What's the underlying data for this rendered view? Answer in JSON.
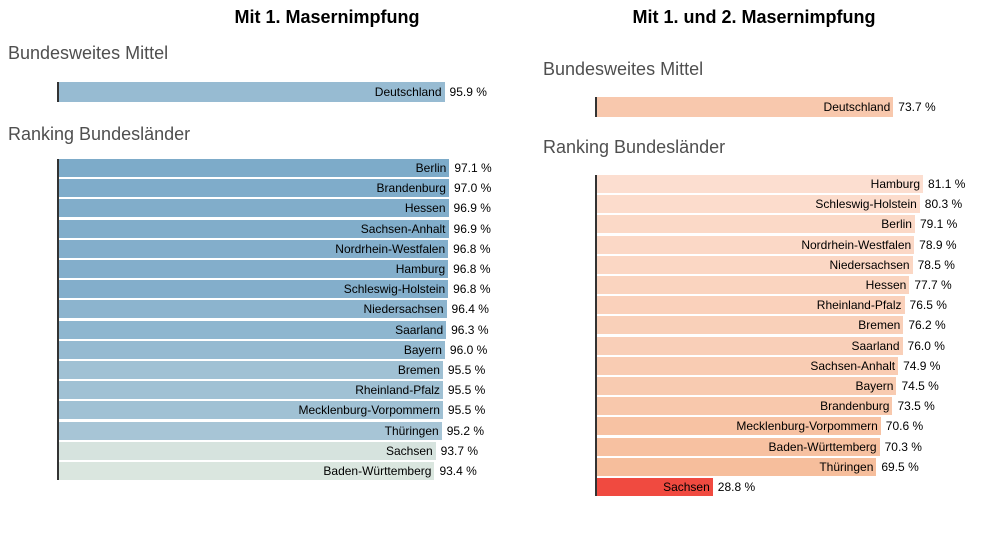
{
  "chart_data": [
    {
      "type": "bar",
      "orientation": "horizontal",
      "title": "Mit 1. Masernimpfung",
      "xlim": [
        0,
        100
      ],
      "value_unit": "%",
      "grid": false,
      "legend": false,
      "axis_color": "#333333",
      "sections": [
        {
          "label": "Bundesweites Mittel",
          "bars": [
            {
              "category": "Deutschland",
              "value": 95.9,
              "value_label": "95.9 %",
              "color": "#97bbd2"
            }
          ]
        },
        {
          "label": "Ranking Bundesländer",
          "bars": [
            {
              "category": "Berlin",
              "value": 97.1,
              "value_label": "97.1 %",
              "color": "#7dabc9"
            },
            {
              "category": "Brandenburg",
              "value": 97.0,
              "value_label": "97.0 %",
              "color": "#7facca"
            },
            {
              "category": "Hessen",
              "value": 96.9,
              "value_label": "96.9 %",
              "color": "#81adca"
            },
            {
              "category": "Sachsen-Anhalt",
              "value": 96.9,
              "value_label": "96.9 %",
              "color": "#81adca"
            },
            {
              "category": "Nordrhein-Westfalen",
              "value": 96.8,
              "value_label": "96.8 %",
              "color": "#83aecb"
            },
            {
              "category": "Hamburg",
              "value": 96.8,
              "value_label": "96.8 %",
              "color": "#83aecb"
            },
            {
              "category": "Schleswig-Holstein",
              "value": 96.8,
              "value_label": "96.8 %",
              "color": "#83aecb"
            },
            {
              "category": "Niedersachsen",
              "value": 96.4,
              "value_label": "96.4 %",
              "color": "#8cb4ce"
            },
            {
              "category": "Saarland",
              "value": 96.3,
              "value_label": "96.3 %",
              "color": "#8eb6cf"
            },
            {
              "category": "Bayern",
              "value": 96.0,
              "value_label": "96.0 %",
              "color": "#95bad1"
            },
            {
              "category": "Bremen",
              "value": 95.5,
              "value_label": "95.5 %",
              "color": "#a0c1d4"
            },
            {
              "category": "Rheinland-Pfalz",
              "value": 95.5,
              "value_label": "95.5 %",
              "color": "#a0c1d4"
            },
            {
              "category": "Mecklenburg-Vorpommern",
              "value": 95.5,
              "value_label": "95.5 %",
              "color": "#a0c1d4"
            },
            {
              "category": "Thüringen",
              "value": 95.2,
              "value_label": "95.2 %",
              "color": "#a7c5d6"
            },
            {
              "category": "Sachsen",
              "value": 93.7,
              "value_label": "93.7 %",
              "color": "#d6e3de"
            },
            {
              "category": "Baden-Württemberg",
              "value": 93.4,
              "value_label": "93.4 %",
              "color": "#dae6df"
            }
          ]
        }
      ]
    },
    {
      "type": "bar",
      "orientation": "horizontal",
      "title": "Mit 1. und 2. Masernimpfung",
      "xlim": [
        0,
        100
      ],
      "value_unit": "%",
      "grid": false,
      "legend": false,
      "axis_color": "#333333",
      "sections": [
        {
          "label": "Bundesweites Mittel",
          "bars": [
            {
              "category": "Deutschland",
              "value": 73.7,
              "value_label": "73.7 %",
              "color": "#f8c8ad"
            }
          ]
        },
        {
          "label": "Ranking Bundesländer",
          "bars": [
            {
              "category": "Hamburg",
              "value": 81.1,
              "value_label": "81.1 %",
              "color": "#fcded0"
            },
            {
              "category": "Schleswig-Holstein",
              "value": 80.3,
              "value_label": "80.3 %",
              "color": "#fcdccc"
            },
            {
              "category": "Berlin",
              "value": 79.1,
              "value_label": "79.1 %",
              "color": "#fbd9c7"
            },
            {
              "category": "Nordrhein-Westfalen",
              "value": 78.9,
              "value_label": "78.9 %",
              "color": "#fbd8c6"
            },
            {
              "category": "Niedersachsen",
              "value": 78.5,
              "value_label": "78.5 %",
              "color": "#fbd7c4"
            },
            {
              "category": "Hessen",
              "value": 77.7,
              "value_label": "77.7 %",
              "color": "#fad4bf"
            },
            {
              "category": "Rheinland-Pfalz",
              "value": 76.5,
              "value_label": "76.5 %",
              "color": "#fad1bb"
            },
            {
              "category": "Bremen",
              "value": 76.2,
              "value_label": "76.2 %",
              "color": "#f9d0b9"
            },
            {
              "category": "Saarland",
              "value": 76.0,
              "value_label": "76.0 %",
              "color": "#f9cfb8"
            },
            {
              "category": "Sachsen-Anhalt",
              "value": 74.9,
              "value_label": "74.9 %",
              "color": "#f9ccb3"
            },
            {
              "category": "Bayern",
              "value": 74.5,
              "value_label": "74.5 %",
              "color": "#f8cbb1"
            },
            {
              "category": "Brandenburg",
              "value": 73.5,
              "value_label": "73.5 %",
              "color": "#f8c8ac"
            },
            {
              "category": "Mecklenburg-Vorpommern",
              "value": 70.6,
              "value_label": "70.6 %",
              "color": "#f7c2a3"
            },
            {
              "category": "Baden-Württemberg",
              "value": 70.3,
              "value_label": "70.3 %",
              "color": "#f7c1a1"
            },
            {
              "category": "Thüringen",
              "value": 69.5,
              "value_label": "69.5 %",
              "color": "#f6be9c"
            },
            {
              "category": "Sachsen",
              "value": 28.8,
              "value_label": "28.8 %",
              "color": "#f04a40"
            }
          ]
        }
      ]
    }
  ]
}
